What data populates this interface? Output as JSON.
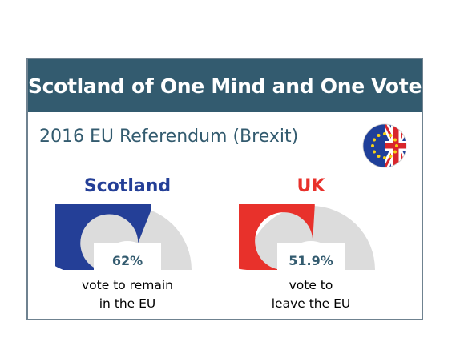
{
  "banner": {
    "title": "Scotland of One Mind and One Vote"
  },
  "subtitle": "2016 EU Referendum (Brexit)",
  "colors": {
    "banner": "#335b6f",
    "subtitle": "#335b6f",
    "scotland": "#243f97",
    "uk": "#e8312b",
    "gauge_bg": "#dcdcdc",
    "border": "#6f8290"
  },
  "icons": {
    "flag": "eu-uk-flag-icon"
  },
  "chart_data": {
    "type": "gauge",
    "gauges": [
      {
        "label": "Scotland",
        "value": 62,
        "max": 100,
        "value_label": "62%",
        "caption_lines": [
          "vote to remain",
          "in the EU"
        ],
        "color": "#243f97"
      },
      {
        "label": "UK",
        "value": 51.9,
        "max": 100,
        "value_label": "51.9%",
        "caption_lines": [
          "vote to",
          "leave the EU"
        ],
        "color": "#e8312b"
      }
    ]
  }
}
